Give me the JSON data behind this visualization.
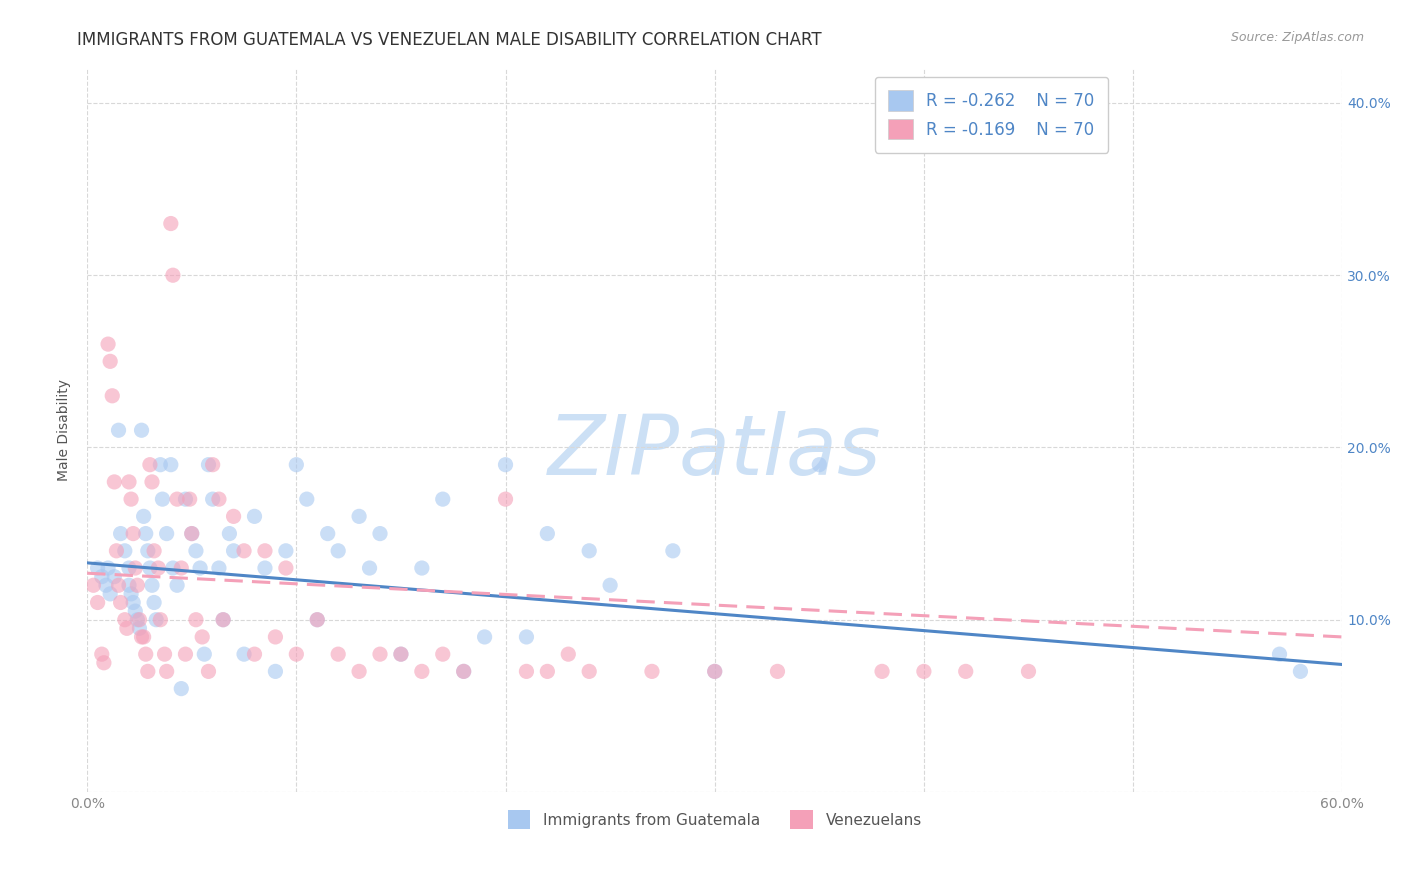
{
  "title": "IMMIGRANTS FROM GUATEMALA VS VENEZUELAN MALE DISABILITY CORRELATION CHART",
  "source": "Source: ZipAtlas.com",
  "ylabel": "Male Disability",
  "legend_label_blue": "Immigrants from Guatemala",
  "legend_label_pink": "Venezuelans",
  "legend_R_blue": "R = -0.262",
  "legend_N_blue": "N = 70",
  "legend_R_pink": "R = -0.169",
  "legend_N_pink": "N = 70",
  "color_blue": "#a8c8f0",
  "color_pink": "#f4a0b8",
  "color_blue_text": "#4f86c6",
  "color_pink_text": "#e87ca0",
  "color_line_blue": "#4f86c6",
  "color_line_pink": "#f4a0b8",
  "watermark": "ZIPatlas",
  "xlim": [
    0.0,
    0.6
  ],
  "ylim": [
    0.0,
    0.42
  ],
  "yticks": [
    0.0,
    0.1,
    0.2,
    0.3,
    0.4
  ],
  "ytick_labels": [
    "",
    "10.0%",
    "20.0%",
    "30.0%",
    "40.0%"
  ],
  "xticks": [
    0.0,
    0.1,
    0.2,
    0.3,
    0.4,
    0.5,
    0.6
  ],
  "xtick_labels": [
    "0.0%",
    "",
    "",
    "",
    "",
    "",
    "60.0%"
  ],
  "blue_x": [
    0.005,
    0.007,
    0.009,
    0.01,
    0.011,
    0.013,
    0.015,
    0.016,
    0.018,
    0.02,
    0.02,
    0.021,
    0.022,
    0.023,
    0.024,
    0.025,
    0.026,
    0.027,
    0.028,
    0.029,
    0.03,
    0.031,
    0.032,
    0.033,
    0.035,
    0.036,
    0.038,
    0.04,
    0.041,
    0.043,
    0.045,
    0.047,
    0.05,
    0.052,
    0.054,
    0.056,
    0.058,
    0.06,
    0.063,
    0.065,
    0.068,
    0.07,
    0.075,
    0.08,
    0.085,
    0.09,
    0.095,
    0.1,
    0.105,
    0.11,
    0.115,
    0.12,
    0.13,
    0.135,
    0.14,
    0.15,
    0.16,
    0.17,
    0.18,
    0.19,
    0.2,
    0.21,
    0.22,
    0.24,
    0.25,
    0.28,
    0.3,
    0.35,
    0.57,
    0.58
  ],
  "blue_y": [
    0.13,
    0.125,
    0.12,
    0.13,
    0.115,
    0.125,
    0.21,
    0.15,
    0.14,
    0.13,
    0.12,
    0.115,
    0.11,
    0.105,
    0.1,
    0.095,
    0.21,
    0.16,
    0.15,
    0.14,
    0.13,
    0.12,
    0.11,
    0.1,
    0.19,
    0.17,
    0.15,
    0.19,
    0.13,
    0.12,
    0.06,
    0.17,
    0.15,
    0.14,
    0.13,
    0.08,
    0.19,
    0.17,
    0.13,
    0.1,
    0.15,
    0.14,
    0.08,
    0.16,
    0.13,
    0.07,
    0.14,
    0.19,
    0.17,
    0.1,
    0.15,
    0.14,
    0.16,
    0.13,
    0.15,
    0.08,
    0.13,
    0.17,
    0.07,
    0.09,
    0.19,
    0.09,
    0.15,
    0.14,
    0.12,
    0.14,
    0.07,
    0.19,
    0.08,
    0.07
  ],
  "pink_x": [
    0.003,
    0.005,
    0.007,
    0.008,
    0.01,
    0.011,
    0.012,
    0.013,
    0.014,
    0.015,
    0.016,
    0.018,
    0.019,
    0.02,
    0.021,
    0.022,
    0.023,
    0.024,
    0.025,
    0.026,
    0.027,
    0.028,
    0.029,
    0.03,
    0.031,
    0.032,
    0.034,
    0.035,
    0.037,
    0.038,
    0.04,
    0.041,
    0.043,
    0.045,
    0.047,
    0.049,
    0.05,
    0.052,
    0.055,
    0.058,
    0.06,
    0.063,
    0.065,
    0.07,
    0.075,
    0.08,
    0.085,
    0.09,
    0.095,
    0.1,
    0.11,
    0.12,
    0.13,
    0.14,
    0.15,
    0.16,
    0.17,
    0.18,
    0.2,
    0.21,
    0.22,
    0.23,
    0.24,
    0.27,
    0.3,
    0.33,
    0.38,
    0.4,
    0.42,
    0.45
  ],
  "pink_y": [
    0.12,
    0.11,
    0.08,
    0.075,
    0.26,
    0.25,
    0.23,
    0.18,
    0.14,
    0.12,
    0.11,
    0.1,
    0.095,
    0.18,
    0.17,
    0.15,
    0.13,
    0.12,
    0.1,
    0.09,
    0.09,
    0.08,
    0.07,
    0.19,
    0.18,
    0.14,
    0.13,
    0.1,
    0.08,
    0.07,
    0.33,
    0.3,
    0.17,
    0.13,
    0.08,
    0.17,
    0.15,
    0.1,
    0.09,
    0.07,
    0.19,
    0.17,
    0.1,
    0.16,
    0.14,
    0.08,
    0.14,
    0.09,
    0.13,
    0.08,
    0.1,
    0.08,
    0.07,
    0.08,
    0.08,
    0.07,
    0.08,
    0.07,
    0.17,
    0.07,
    0.07,
    0.08,
    0.07,
    0.07,
    0.07,
    0.07,
    0.07,
    0.07,
    0.07,
    0.07
  ],
  "blue_trend_y_start": 0.133,
  "blue_trend_y_end": 0.074,
  "pink_trend_y_start": 0.127,
  "pink_trend_y_end": 0.09,
  "background_color": "#ffffff",
  "grid_color": "#d8d8d8",
  "title_fontsize": 12,
  "axis_label_fontsize": 10,
  "tick_fontsize": 10,
  "watermark_color": "#cce0f5",
  "watermark_fontsize": 60
}
